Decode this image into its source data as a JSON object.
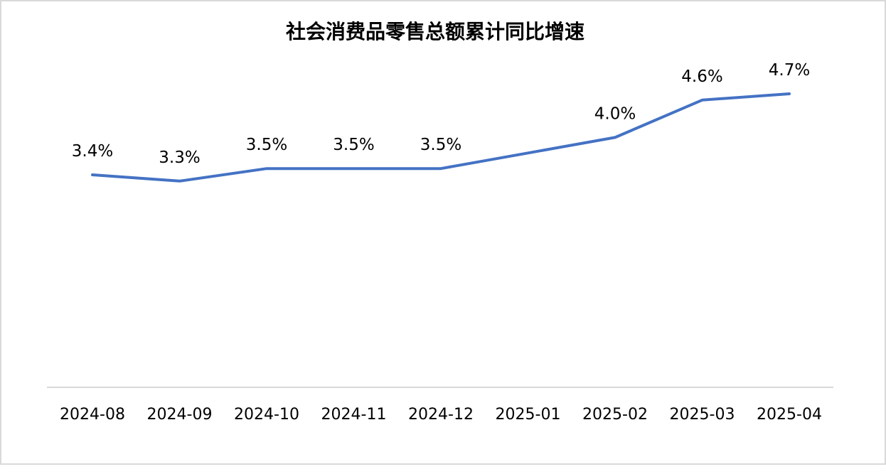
{
  "chart_data": {
    "type": "line",
    "title": "社会消费品零售总额累计同比增速",
    "categories": [
      "2024-08",
      "2024-09",
      "2024-10",
      "2024-11",
      "2024-12",
      "2025-01",
      "2025-02",
      "2025-03",
      "2025-04"
    ],
    "series": [
      {
        "values": [
          3.4,
          3.3,
          3.5,
          3.5,
          3.5,
          null,
          4.0,
          4.6,
          4.7
        ],
        "labels": [
          "3.4%",
          "3.3%",
          "3.5%",
          "3.5%",
          "3.5%",
          "",
          "4.0%",
          "4.6%",
          "4.7%"
        ],
        "color": "#4472c4"
      }
    ],
    "drop_lines": true,
    "grid": false,
    "legend": "none",
    "xlabel": "",
    "ylabel": ""
  }
}
